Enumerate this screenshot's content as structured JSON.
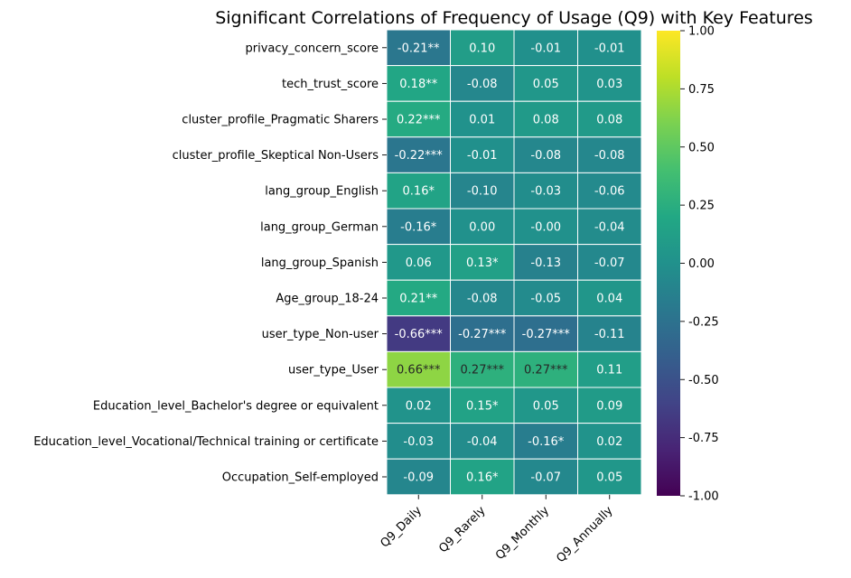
{
  "chart_data": {
    "type": "heatmap",
    "title": "Significant Correlations of Frequency of Usage (Q9) with Key Features",
    "xlabel": "",
    "ylabel": "",
    "columns": [
      "Q9_Daily",
      "Q9_Rarely",
      "Q9_Monthly",
      "Q9_Annually"
    ],
    "rows": [
      "privacy_concern_score",
      "tech_trust_score",
      "cluster_profile_Pragmatic Sharers",
      "cluster_profile_Skeptical Non-Users",
      "lang_group_English",
      "lang_group_German",
      "lang_group_Spanish",
      "Age_group_18-24",
      "user_type_Non-user",
      "user_type_User",
      "Education_level_Bachelor's degree or equivalent",
      "Education_level_Vocational/Technical training or certificate",
      "Occupation_Self-employed"
    ],
    "values": [
      [
        -0.21,
        0.1,
        -0.01,
        -0.01
      ],
      [
        0.18,
        -0.08,
        0.05,
        0.03
      ],
      [
        0.22,
        0.01,
        0.08,
        0.08
      ],
      [
        -0.22,
        -0.01,
        -0.08,
        -0.08
      ],
      [
        0.16,
        -0.1,
        -0.03,
        -0.06
      ],
      [
        -0.16,
        0.0,
        -0.0,
        -0.04
      ],
      [
        0.06,
        0.13,
        -0.13,
        -0.07
      ],
      [
        0.21,
        -0.08,
        -0.05,
        0.04
      ],
      [
        -0.66,
        -0.27,
        -0.27,
        -0.11
      ],
      [
        0.66,
        0.27,
        0.27,
        0.11
      ],
      [
        0.02,
        0.15,
        0.05,
        0.09
      ],
      [
        -0.03,
        -0.04,
        -0.16,
        0.02
      ],
      [
        -0.09,
        0.16,
        -0.07,
        0.05
      ]
    ],
    "annotations": [
      [
        "-0.21**",
        "0.10",
        "-0.01",
        "-0.01"
      ],
      [
        "0.18**",
        "-0.08",
        "0.05",
        "0.03"
      ],
      [
        "0.22***",
        "0.01",
        "0.08",
        "0.08"
      ],
      [
        "-0.22***",
        "-0.01",
        "-0.08",
        "-0.08"
      ],
      [
        "0.16*",
        "-0.10",
        "-0.03",
        "-0.06"
      ],
      [
        "-0.16*",
        "0.00",
        "-0.00",
        "-0.04"
      ],
      [
        "0.06",
        "0.13*",
        "-0.13",
        "-0.07"
      ],
      [
        "0.21**",
        "-0.08",
        "-0.05",
        "0.04"
      ],
      [
        "-0.66***",
        "-0.27***",
        "-0.27***",
        "-0.11"
      ],
      [
        "0.66***",
        "0.27***",
        "0.27***",
        "0.11"
      ],
      [
        "0.02",
        "0.15*",
        "0.05",
        "0.09"
      ],
      [
        "-0.03",
        "-0.04",
        "-0.16*",
        "0.02"
      ],
      [
        "-0.09",
        "0.16*",
        "-0.07",
        "0.05"
      ]
    ],
    "colormap": "viridis",
    "vmin": -1,
    "vmax": 1,
    "colorbar_ticks": [
      "-1.00",
      "-0.75",
      "-0.50",
      "-0.25",
      "0.00",
      "0.25",
      "0.50",
      "0.75",
      "1.00"
    ],
    "cell_border_color": "#ffffff",
    "annotation_colors": {
      "light": "#ffffff",
      "dark": "#262626"
    }
  }
}
